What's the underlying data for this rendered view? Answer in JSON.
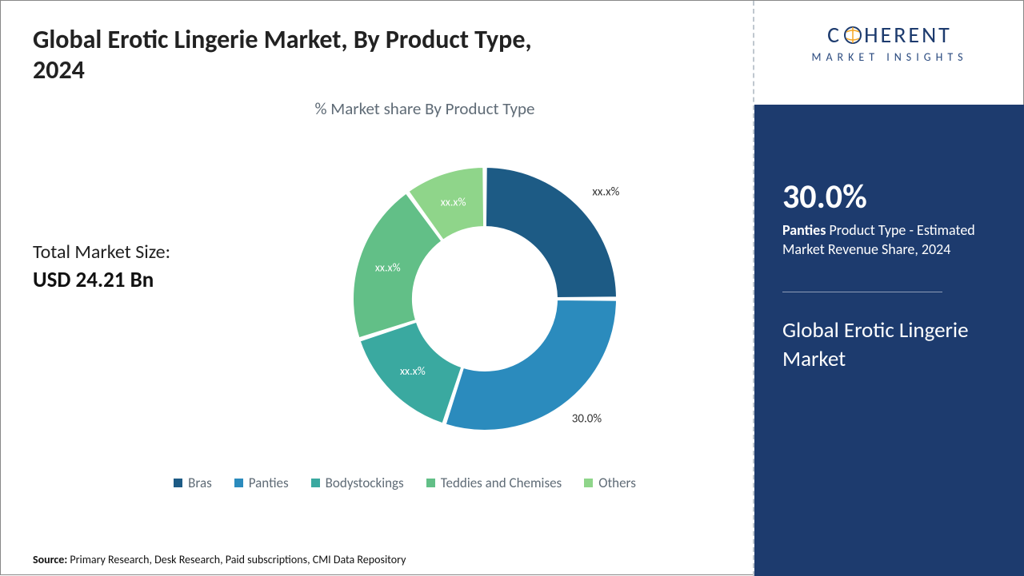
{
  "title": "Global Erotic Lingerie Market, By Product Type, 2024",
  "chart": {
    "type": "donut",
    "subtitle": "% Market share By Product Type",
    "inner_radius": 90,
    "outer_radius": 165,
    "background_color": "#ffffff",
    "slice_gap_color": "#ffffff",
    "slice_gap_width": 2,
    "segments": [
      {
        "name": "Bras",
        "value": 25,
        "color": "#1d5b85",
        "label": "xx.x%"
      },
      {
        "name": "Panties",
        "value": 30,
        "color": "#2b8bbd",
        "label": "30.0%"
      },
      {
        "name": "Bodystockings",
        "value": 15,
        "color": "#3aa9a0",
        "label": "xx.x%"
      },
      {
        "name": "Teddies and Chemises",
        "value": 20,
        "color": "#62bf87",
        "label": "xx.x%"
      },
      {
        "name": "Others",
        "value": 10,
        "color": "#8fd58a",
        "label": "xx.x%"
      }
    ],
    "label_fontsize": 14,
    "label_color_inside": "#ffffff",
    "label_color_outside": "#333333"
  },
  "left_info": {
    "label": "Total Market Size:",
    "value": "USD 24.21 Bn"
  },
  "legend": {
    "items": [
      {
        "label": "Bras",
        "color": "#1d5b85"
      },
      {
        "label": "Panties",
        "color": "#2b8bbd"
      },
      {
        "label": "Bodystockings",
        "color": "#3aa9a0"
      },
      {
        "label": "Teddies and Chemises",
        "color": "#62bf87"
      },
      {
        "label": "Others",
        "color": "#8fd58a"
      }
    ],
    "fontsize": 17,
    "text_color": "#5f6b76"
  },
  "source": {
    "prefix": "Source:",
    "text": "Primary Research, Desk Research, Paid subscriptions, CMI Data Repository"
  },
  "logo": {
    "main": "COHERENT",
    "sub": "MARKET INSIGHTS",
    "color": "#1d3b6e",
    "icon_colors": [
      "#f5a623",
      "#1d3b6e"
    ]
  },
  "highlight": {
    "stat": "30.0%",
    "desc_bold": "Panties",
    "desc_rest": " Product Type - Estimated Market Revenue Share, 2024",
    "market_name": "Global Erotic Lingerie Market",
    "background_color": "#1d3b6e",
    "text_color": "#ffffff",
    "stat_fontsize": 42,
    "desc_fontsize": 18,
    "name_fontsize": 27
  }
}
